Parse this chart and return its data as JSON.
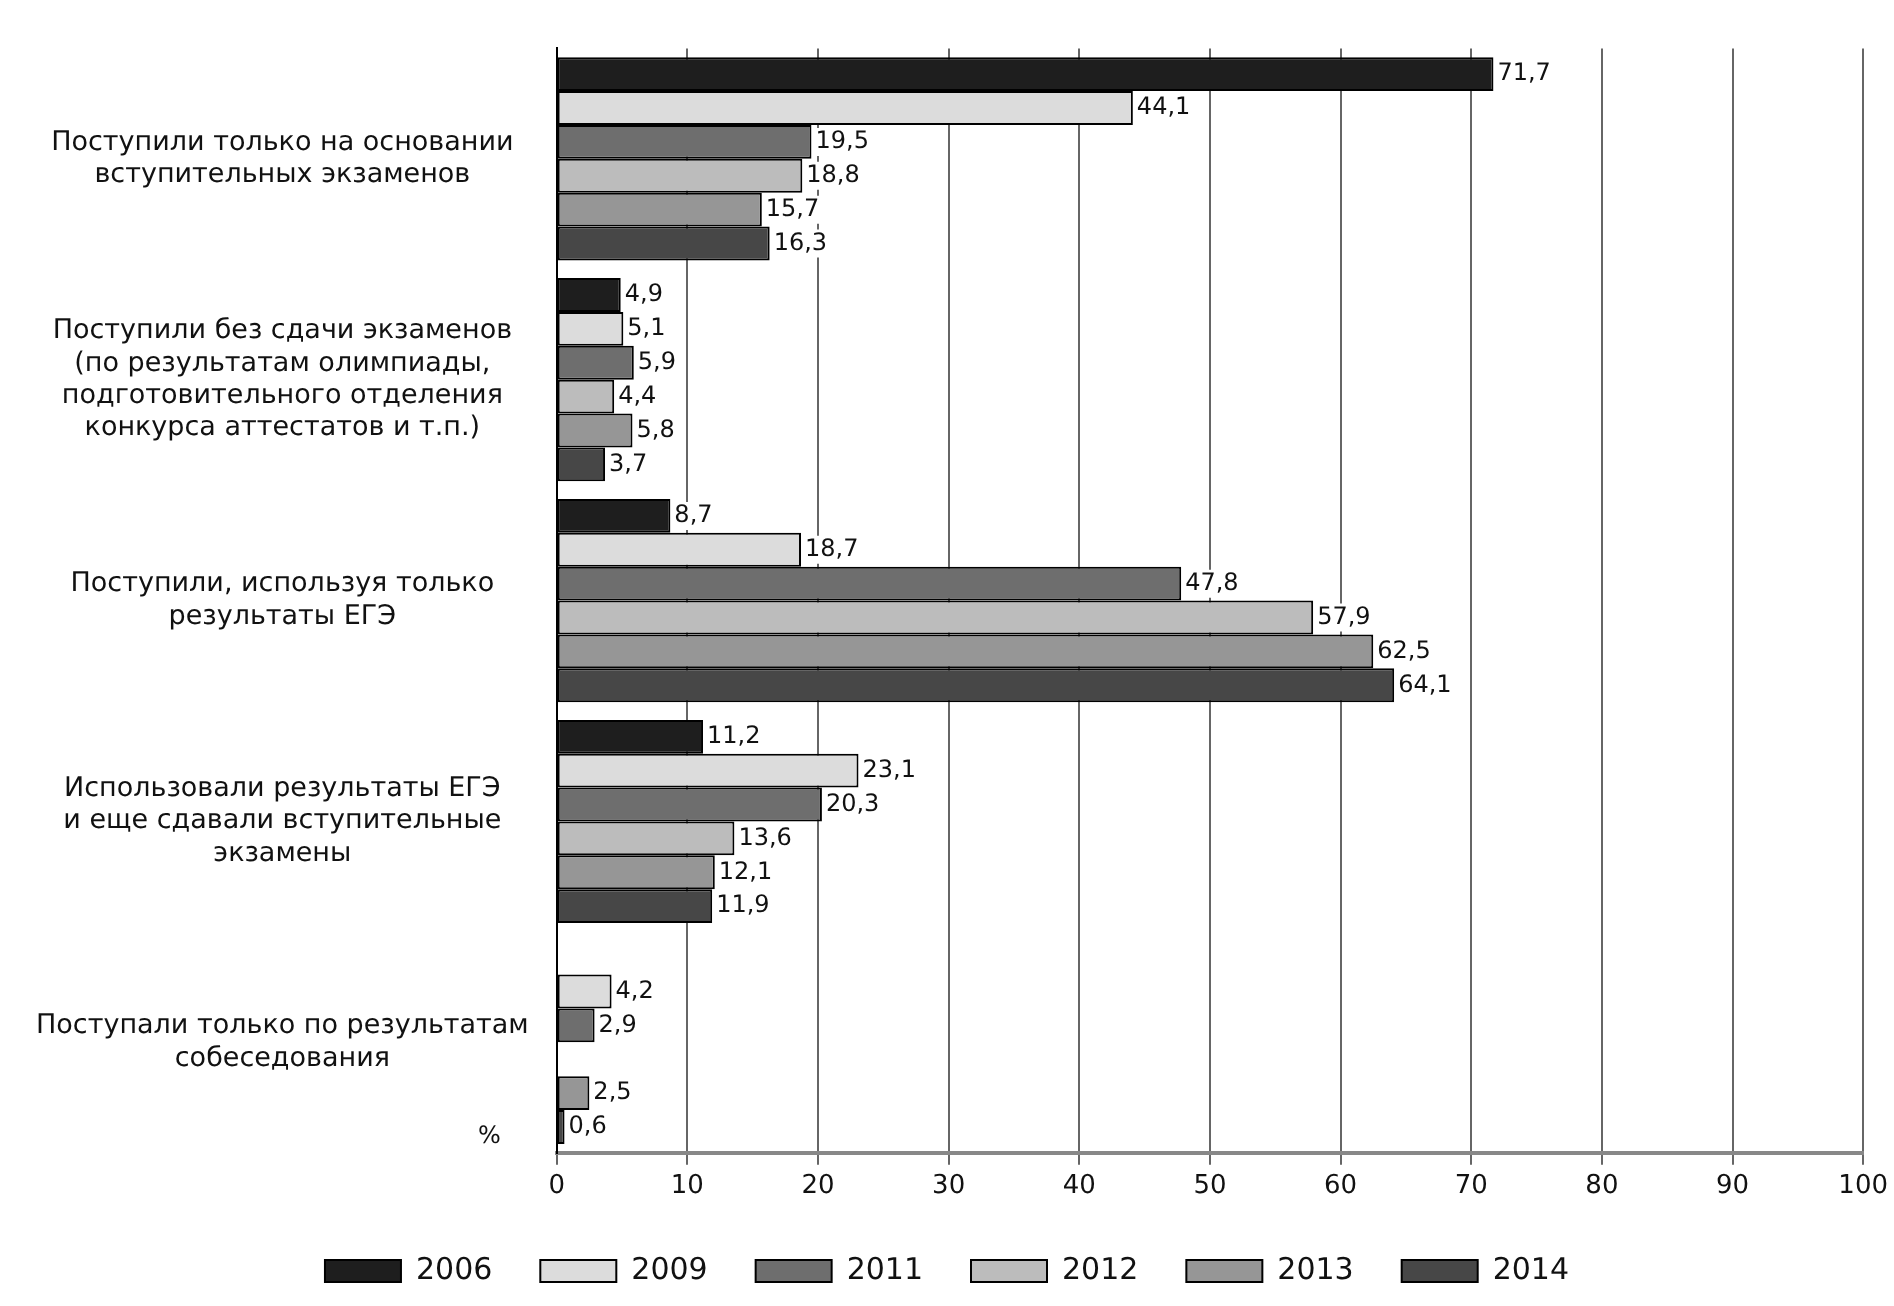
{
  "chart_data": {
    "type": "bar",
    "orientation": "horizontal",
    "xlabel": "%",
    "categories": [
      "Поступили только на основании\nвступительных экзаменов",
      "Поступили без сдачи экзаменов\n(по результатам олимпиады,\nподготовительного отделения\nконкурса аттестатов и т.п.)",
      "Поступили, используя только\nрезультаты ЕГЭ",
      "Использовали результаты ЕГЭ\nи еще сдавали вступительные\nэкзамены",
      "Поступали только по результатам\nсобеседования"
    ],
    "series": [
      {
        "name": "2006",
        "color": "#1e1e1e",
        "values": [
          71.7,
          4.9,
          8.7,
          11.2,
          null
        ],
        "value_labels": [
          "71,7",
          "4,9",
          "8,7",
          "11,2",
          null
        ]
      },
      {
        "name": "2009",
        "color": "#dcdcdc",
        "values": [
          44.1,
          5.1,
          18.7,
          23.1,
          4.2
        ],
        "value_labels": [
          "44,1",
          "5,1",
          "18,7",
          "23,1",
          "4,2"
        ]
      },
      {
        "name": "2011",
        "color": "#6e6e6e",
        "values": [
          19.5,
          5.9,
          47.8,
          20.3,
          2.9
        ],
        "value_labels": [
          "19,5",
          "5,9",
          "47,8",
          "20,3",
          "2,9"
        ]
      },
      {
        "name": "2012",
        "color": "#bcbcbc",
        "values": [
          18.8,
          4.4,
          57.9,
          13.6,
          null
        ],
        "value_labels": [
          "18,8",
          "4,4",
          "57,9",
          "13,6",
          null
        ]
      },
      {
        "name": "2013",
        "color": "#969696",
        "values": [
          15.7,
          5.8,
          62.5,
          12.1,
          2.5
        ],
        "value_labels": [
          "15,7",
          "5,8",
          "62,5",
          "12,1",
          "2,5"
        ]
      },
      {
        "name": "2014",
        "color": "#474747",
        "values": [
          16.3,
          3.7,
          64.1,
          11.9,
          0.6
        ],
        "value_labels": [
          "16,3",
          "3,7",
          "64,1",
          "11,9",
          "0,6"
        ]
      }
    ],
    "xlim": [
      0,
      100
    ],
    "xticks": [
      0,
      10,
      20,
      30,
      40,
      50,
      60,
      70,
      80,
      90,
      100
    ],
    "grid": "x",
    "legend": "bottom"
  }
}
